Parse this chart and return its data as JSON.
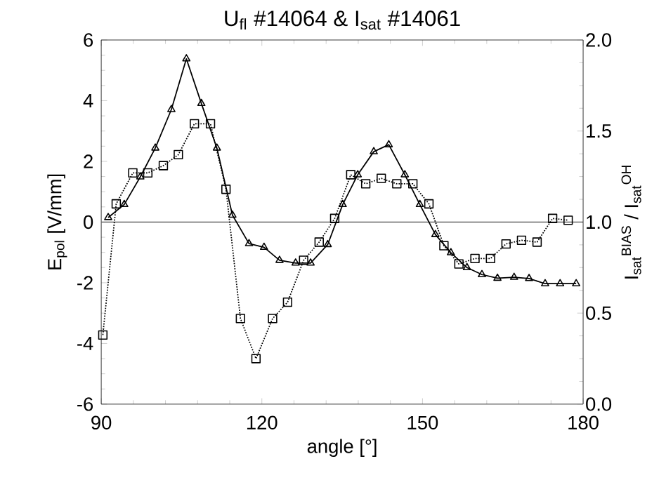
{
  "chart_data": {
    "type": "line",
    "title": "U$_{fl}$  #14064      &      I$_{sat}$  #14061",
    "xlabel": "angle [°]",
    "ylabel": "E$_{pol}$ [V/mm]",
    "y2label": "I$_{sat}$$^{BIAS}$ / I$_{sat}$$^{OH}$",
    "xlim": [
      90,
      180
    ],
    "xticks": [
      90,
      120,
      150,
      180
    ],
    "ylim": [
      -6,
      6
    ],
    "yticks": [
      -6,
      -4,
      -2,
      0,
      2,
      4,
      6
    ],
    "y2lim": [
      0,
      2
    ],
    "y2ticks": [
      {
        "value": 0,
        "label": "0.0"
      },
      {
        "value": 0.5,
        "label": "0.5"
      },
      {
        "value": 1,
        "label": "1.0"
      },
      {
        "value": 1.5,
        "label": "1.5"
      },
      {
        "value": 2,
        "label": "2.0"
      }
    ],
    "series": [
      {
        "color": "#000000",
        "marker": "triangle",
        "line_style": "solid",
        "x": [
          91.3,
          94.3,
          97.3,
          100.1,
          103.1,
          105.9,
          108.7,
          111.6,
          114.5,
          117.6,
          120.4,
          123.3,
          126.3,
          129.1,
          132.3,
          135.1,
          137.9,
          140.9,
          143.7,
          146.7,
          149.5,
          152.4,
          155.3,
          158.3,
          161.1,
          164.0,
          167.1,
          169.9,
          172.9,
          175.7,
          178.7
        ],
        "values": [
          0.15,
          0.58,
          1.49,
          2.44,
          3.71,
          5.38,
          3.91,
          2.44,
          0.23,
          -0.71,
          -0.83,
          -1.26,
          -1.35,
          -1.35,
          -0.74,
          0.58,
          1.56,
          2.32,
          2.55,
          1.56,
          0.58,
          -0.41,
          -1.01,
          -1.5,
          -1.73,
          -1.85,
          -1.82,
          -1.86,
          -2.03,
          -2.03,
          -2.03
        ]
      },
      {
        "color": "#000000",
        "marker": "square",
        "line_style": "dotted",
        "axis": "y2",
        "x": [
          90.3,
          92.8,
          95.9,
          98.7,
          101.6,
          104.4,
          107.4,
          110.4,
          113.3,
          116.0,
          118.9,
          122.0,
          124.8,
          127.8,
          130.7,
          133.6,
          136.6,
          139.4,
          142.3,
          145.2,
          148.2,
          151.2,
          154.0,
          156.8,
          159.8,
          162.7,
          165.6,
          168.5,
          171.4,
          174.3,
          177.2
        ],
        "values": [
          0.38,
          1.1,
          1.27,
          1.27,
          1.31,
          1.37,
          1.54,
          1.54,
          1.18,
          0.47,
          0.25,
          0.47,
          0.56,
          0.79,
          0.89,
          1.02,
          1.26,
          1.21,
          1.24,
          1.21,
          1.21,
          1.1,
          0.87,
          0.77,
          0.8,
          0.8,
          0.88,
          0.9,
          0.89,
          1.02,
          1.01
        ]
      }
    ],
    "ref_lines": [
      {
        "axis": "y",
        "value": 0,
        "color": "#666666",
        "line_style": "solid"
      }
    ]
  }
}
